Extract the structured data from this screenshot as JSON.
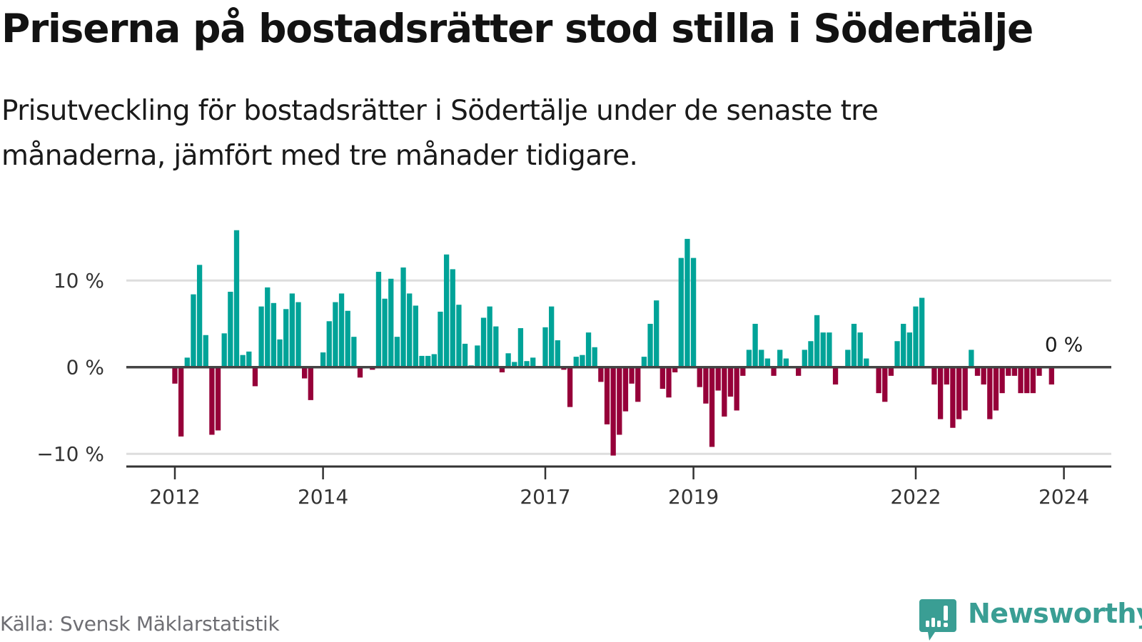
{
  "header": {
    "title": "Priserna på bostadsrätter stod stilla i Södertälje",
    "subtitle": "Prisutveckling för bostadsrätter i Södertälje under de senaste tre månaderna, jämfört med tre månader tidigare."
  },
  "footer": {
    "source": "Källa: Svensk Mäklarstatistik",
    "brand": "Newsworthy",
    "brand_icon": "newsworthy-logo-icon"
  },
  "colors": {
    "positive": "#00a398",
    "negative": "#960039",
    "baseline": "#444444",
    "gridline": "#dddddd",
    "brand": "#3a9e94"
  },
  "chart_data": {
    "type": "bar",
    "title": "Priserna på bostadsrätter stod stilla i Södertälje",
    "xlabel": "",
    "ylabel": "",
    "unit": "%",
    "start": "2012-01",
    "frequency": "monthly",
    "ylim": [
      -11.5,
      16.5
    ],
    "grid": true,
    "y_ticks": [
      {
        "value": 10,
        "label": "10 %"
      },
      {
        "value": 0,
        "label": "0 %"
      },
      {
        "value": -10,
        "label": "−10 %"
      }
    ],
    "x_ticks": [
      {
        "index": 0,
        "label": "2012"
      },
      {
        "index": 24,
        "label": "2014"
      },
      {
        "index": 60,
        "label": "2017"
      },
      {
        "index": 84,
        "label": "2019"
      },
      {
        "index": 120,
        "label": "2022"
      },
      {
        "index": 144,
        "label": "2024"
      }
    ],
    "end_label": "0 %",
    "values": [
      -1.9,
      -8.0,
      1.1,
      8.4,
      11.8,
      3.7,
      -7.8,
      -7.3,
      3.9,
      8.7,
      15.8,
      1.4,
      1.8,
      -2.2,
      7.0,
      9.2,
      7.4,
      3.2,
      6.7,
      8.5,
      7.5,
      -1.3,
      -3.8,
      0,
      1.7,
      5.3,
      7.5,
      8.5,
      6.5,
      3.5,
      -1.2,
      0,
      -0.3,
      11.0,
      7.9,
      10.2,
      3.5,
      11.5,
      8.5,
      7.1,
      1.3,
      1.3,
      1.5,
      6.4,
      13.0,
      11.3,
      7.2,
      2.7,
      0.2,
      2.5,
      5.7,
      7.0,
      4.7,
      -0.6,
      1.6,
      0.6,
      4.5,
      0.7,
      1.1,
      0,
      4.6,
      7.0,
      3.1,
      -0.3,
      -4.6,
      1.2,
      1.4,
      4.0,
      2.3,
      -1.7,
      -6.6,
      -10.2,
      -7.8,
      -5.1,
      -1.9,
      -4.0,
      1.2,
      5.0,
      7.7,
      -2.5,
      -3.5,
      -0.6,
      12.6,
      14.8,
      12.6,
      -2.3,
      -4.2,
      -9.2,
      -2.7,
      -5.7,
      -3.4,
      -5.0,
      -1.0,
      2,
      5,
      2,
      1,
      -1,
      2,
      1,
      0,
      -1,
      2,
      3,
      6,
      4,
      4,
      -2,
      0,
      2,
      5,
      4,
      1,
      0,
      -3,
      -4,
      -1,
      3,
      5,
      4,
      7,
      8,
      0,
      -2,
      -6,
      -2,
      -7,
      -6,
      -5,
      2,
      -1,
      -2,
      -6,
      -5,
      -3,
      -1,
      -1,
      -3,
      -3,
      -3,
      -1,
      0,
      -2,
      0,
      0
    ]
  }
}
